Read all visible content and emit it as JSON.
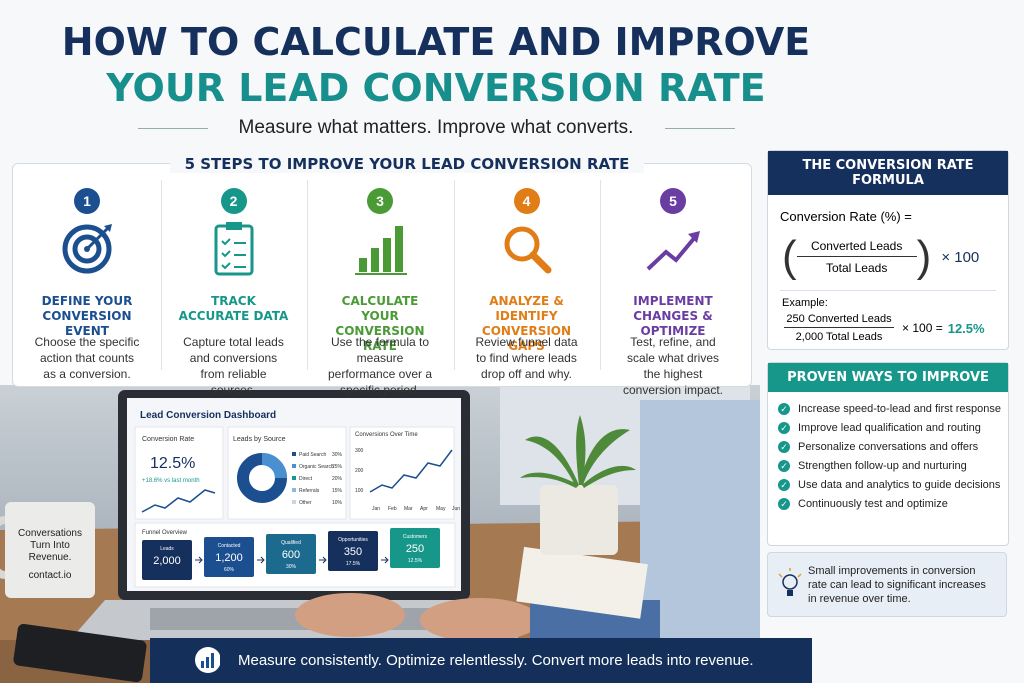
{
  "header": {
    "title_line1": "HOW TO CALCULATE AND IMPROVE",
    "title_line2": "YOUR LEAD CONVERSION RATE",
    "subtitle": "Measure what matters. Improve what converts."
  },
  "steps": {
    "heading": "5 STEPS TO IMPROVE YOUR LEAD CONVERSION RATE",
    "items": [
      {
        "number": 1,
        "title": "DEFINE YOUR CONVERSION EVENT",
        "text": "Choose the specific action that counts as a conversion.",
        "color": "#1b4f8f"
      },
      {
        "number": 2,
        "title": "TRACK ACCURATE DATA",
        "text": "Capture total leads and conversions from reliable sources.",
        "color": "#17978a"
      },
      {
        "number": 3,
        "title": "CALCULATE YOUR CONVERSION RATE",
        "text": "Use the formula to measure performance over a specific period.",
        "color": "#4a9a36"
      },
      {
        "number": 4,
        "title": "ANALYZE & IDENTIFY CONVERSION GAPS",
        "text": "Review funnel data to find where leads drop off and why.",
        "color": "#e07d17"
      },
      {
        "number": 5,
        "title": "IMPLEMENT CHANGES & OPTIMIZE",
        "text": "Test, refine, and scale what drives the highest conversion impact.",
        "color": "#6a3da3"
      }
    ]
  },
  "formula": {
    "heading": "THE CONVERSION RATE FORMULA",
    "label": "Conversion Rate (%) =",
    "numerator": "Converted Leads",
    "denominator": "Total Leads",
    "multiplier": "× 100",
    "example_label": "Example:",
    "example_numerator": "250 Converted Leads",
    "example_denominator": "2,000 Total Leads",
    "example_multiplier": "× 100 =",
    "example_result": "12.5%"
  },
  "improve": {
    "heading": "PROVEN WAYS TO IMPROVE",
    "items": [
      "Increase speed-to-lead and first response",
      "Improve lead qualification and routing",
      "Personalize conversations and offers",
      "Strengthen follow-up and nurturing",
      "Use data and analytics to guide decisions",
      "Continuously test and optimize"
    ]
  },
  "tip": "Small improvements in conversion rate can lead to significant increases in revenue over time.",
  "dashboard": {
    "title": "Lead Conversion Dashboard",
    "rate_label": "Conversion Rate",
    "rate": "12.5%",
    "rate_change": "+18.6% vs last month",
    "sources_label": "Leads by Source",
    "sources": [
      [
        "Paid Search",
        "30%"
      ],
      [
        "Organic Search",
        "25%"
      ],
      [
        "Direct",
        "20%"
      ],
      [
        "Referrals",
        "15%"
      ],
      [
        "Other",
        "10%"
      ]
    ],
    "trend_label": "Conversions Over Time",
    "trend_ticks": [
      "300",
      "200",
      "100"
    ],
    "months": [
      "Jan",
      "Feb",
      "Mar",
      "Apr",
      "May",
      "Jun"
    ],
    "funnel_label": "Funnel Overview",
    "funnel": [
      [
        "Leads",
        "2,000",
        ""
      ],
      [
        "Contacted",
        "1,200",
        "60%"
      ],
      [
        "Qualified",
        "600",
        "30%"
      ],
      [
        "Opportunities",
        "350",
        "17.5%"
      ],
      [
        "Customers",
        "250",
        "12.5%"
      ]
    ]
  },
  "mug": {
    "text": "Conversations Turn Into Revenue.",
    "site": "contact.io"
  },
  "banner": "Measure consistently. Optimize relentlessly. Convert more leads into revenue."
}
